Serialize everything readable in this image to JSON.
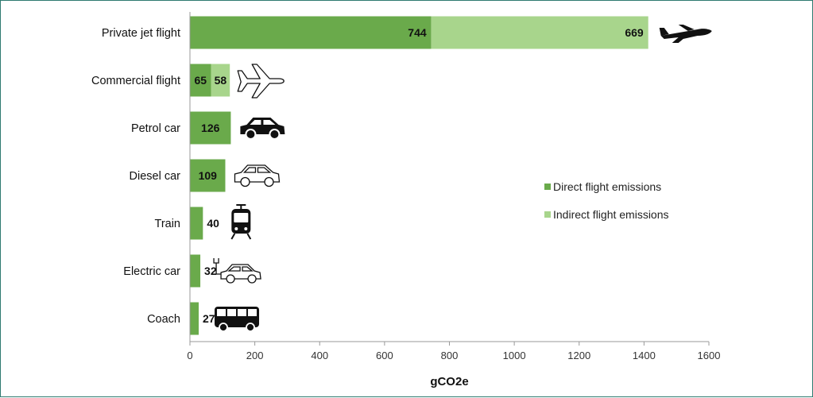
{
  "chart_data": {
    "type": "bar",
    "orientation": "horizontal",
    "stacked": true,
    "categories": [
      "Private jet flight",
      "Commercial flight",
      "Petrol car",
      "Diesel car",
      "Train",
      "Electric car",
      "Coach"
    ],
    "series": [
      {
        "name": "Direct flight emissions",
        "values": [
          744,
          65,
          126,
          109,
          40,
          32,
          27
        ],
        "color": "#6aaa4b"
      },
      {
        "name": "Indirect flight emissions",
        "values": [
          669,
          58,
          0,
          0,
          0,
          0,
          0
        ],
        "color": "#a8d58c"
      }
    ],
    "xlabel": "gCO2e",
    "xlim": [
      0,
      1600
    ],
    "xticks": [
      "0",
      "200",
      "400",
      "600",
      "800",
      "1000",
      "1200",
      "1400",
      "1600"
    ],
    "grid": false,
    "legend_position": "right",
    "icons": [
      "private-jet-icon",
      "commercial-plane-icon",
      "petrol-car-icon",
      "diesel-car-icon",
      "train-icon",
      "electric-car-icon",
      "coach-icon"
    ]
  }
}
